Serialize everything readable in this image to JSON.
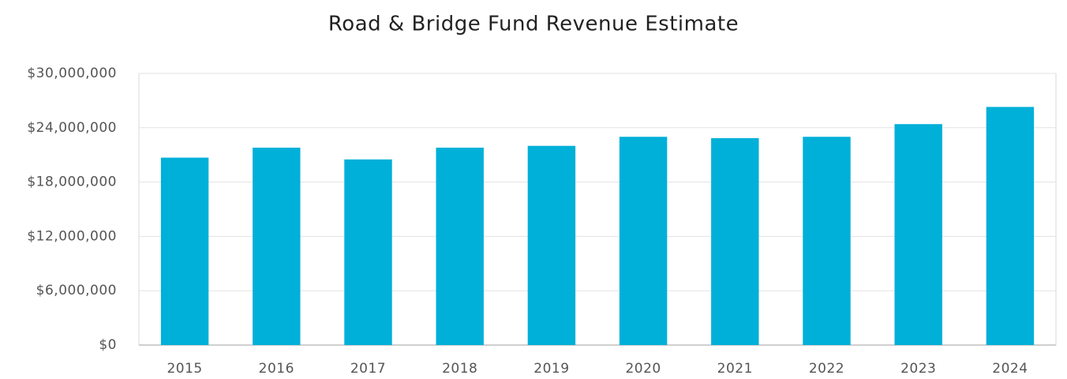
{
  "chart_data": {
    "type": "bar",
    "title": "Road & Bridge Fund Revenue Estimate",
    "categories": [
      "2015",
      "2016",
      "2017",
      "2018",
      "2019",
      "2020",
      "2021",
      "2022",
      "2023",
      "2024"
    ],
    "values": [
      20700000,
      21800000,
      20500000,
      21800000,
      22000000,
      23000000,
      22850000,
      23000000,
      24400000,
      26300000
    ],
    "color": "#00b0d8",
    "ylim": [
      0,
      30000000
    ],
    "yticks": [
      {
        "value": 0,
        "label": "$0"
      },
      {
        "value": 6000000,
        "label": "$6,000,000"
      },
      {
        "value": 12000000,
        "label": "$12,000,000"
      },
      {
        "value": 18000000,
        "label": "$18,000,000"
      },
      {
        "value": 24000000,
        "label": "$24,000,000"
      },
      {
        "value": 30000000,
        "label": "$30,000,000"
      }
    ],
    "grid": true
  }
}
